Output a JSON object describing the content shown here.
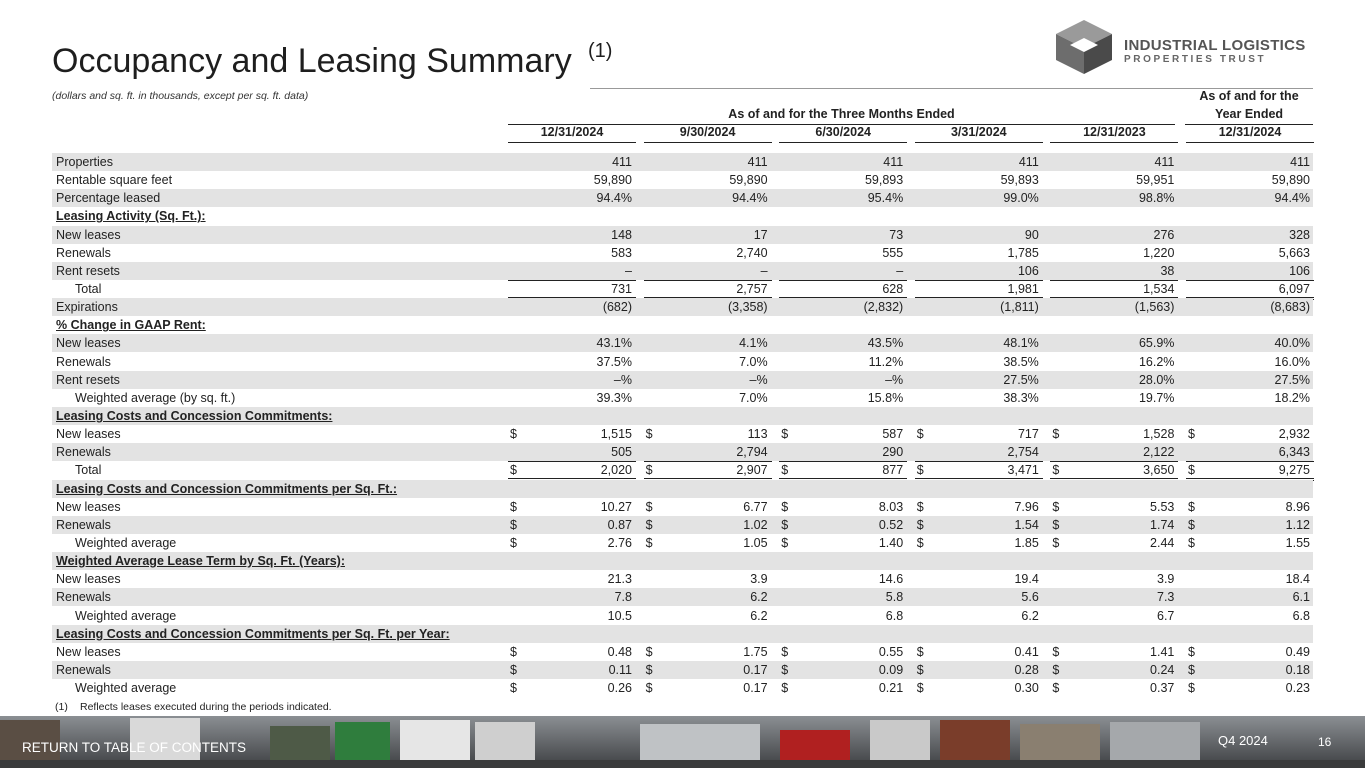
{
  "header": {
    "title": "Occupancy and Leasing Summary",
    "title_note": "(1)",
    "subtitle": "(dollars and sq. ft. in thousands, except per sq. ft. data)"
  },
  "logo": {
    "line1": "INDUSTRIAL LOGISTICS",
    "line2": "PROPERTIES TRUST"
  },
  "table": {
    "group_quarter": "As of and for the Three Months Ended",
    "group_year": [
      "As of and for the",
      "Year Ended"
    ],
    "columns": [
      "12/31/2024",
      "9/30/2024",
      "6/30/2024",
      "3/31/2024",
      "12/31/2023",
      "12/31/2024"
    ],
    "rows": [
      {
        "label": "Properties",
        "values": [
          "411",
          "411",
          "411",
          "411",
          "411",
          "411"
        ]
      },
      {
        "label": "Rentable square feet",
        "values": [
          "59,890",
          "59,890",
          "59,893",
          "59,893",
          "59,951",
          "59,890"
        ]
      },
      {
        "label": "Percentage leased",
        "values": [
          "94.4%",
          "94.4%",
          "95.4%",
          "99.0%",
          "98.8%",
          "94.4%"
        ]
      },
      {
        "label": "Leasing Activity (Sq. Ft.):"
      },
      {
        "label": "New leases",
        "values": [
          "148",
          "17",
          "73",
          "90",
          "276",
          "328"
        ]
      },
      {
        "label": "Renewals",
        "values": [
          "583",
          "2,740",
          "555",
          "1,785",
          "1,220",
          "5,663"
        ]
      },
      {
        "label": "Rent resets",
        "values": [
          "–",
          "–",
          "–",
          "106",
          "38",
          "106"
        ]
      },
      {
        "label": "Total",
        "indent": true,
        "total": true,
        "values": [
          "731",
          "2,757",
          "628",
          "1,981",
          "1,534",
          "6,097"
        ]
      },
      {
        "label": "Expirations",
        "values": [
          "(682)",
          "(3,358)",
          "(2,832)",
          "(1,811)",
          "(1,563)",
          "(8,683)"
        ]
      },
      {
        "label": "% Change in GAAP Rent:"
      },
      {
        "label": "New leases",
        "values": [
          "43.1%",
          "4.1%",
          "43.5%",
          "48.1%",
          "65.9%",
          "40.0%"
        ]
      },
      {
        "label": "Renewals",
        "values": [
          "37.5%",
          "7.0%",
          "11.2%",
          "38.5%",
          "16.2%",
          "16.0%"
        ]
      },
      {
        "label": "Rent resets",
        "values": [
          "–%",
          "–%",
          "–%",
          "27.5%",
          "28.0%",
          "27.5%"
        ]
      },
      {
        "label": "Weighted average (by sq. ft.)",
        "indent": true,
        "values": [
          "39.3%",
          "7.0%",
          "15.8%",
          "38.3%",
          "19.7%",
          "18.2%"
        ]
      },
      {
        "label": "Leasing Costs and Concession Commitments:"
      },
      {
        "label": "New leases",
        "currency": "$",
        "values": [
          "1,515",
          "113",
          "587",
          "717",
          "1,528",
          "2,932"
        ]
      },
      {
        "label": "Renewals",
        "values": [
          "505",
          "2,794",
          "290",
          "2,754",
          "2,122",
          "6,343"
        ]
      },
      {
        "label": "Total",
        "indent": true,
        "total": true,
        "currency": "$",
        "values": [
          "2,020",
          "2,907",
          "877",
          "3,471",
          "3,650",
          "9,275"
        ]
      },
      {
        "label": "Leasing Costs and Concession Commitments per Sq. Ft.:"
      },
      {
        "label": "New leases",
        "currency": "$",
        "values": [
          "10.27",
          "6.77",
          "8.03",
          "7.96",
          "5.53",
          "8.96"
        ]
      },
      {
        "label": "Renewals",
        "currency": "$",
        "values": [
          "0.87",
          "1.02",
          "0.52",
          "1.54",
          "1.74",
          "1.12"
        ]
      },
      {
        "label": "Weighted average",
        "indent": true,
        "currency": "$",
        "values": [
          "2.76",
          "1.05",
          "1.40",
          "1.85",
          "2.44",
          "1.55"
        ]
      },
      {
        "label": "Weighted Average Lease Term by Sq. Ft. (Years):"
      },
      {
        "label": "New leases",
        "values": [
          "21.3",
          "3.9",
          "14.6",
          "19.4",
          "3.9",
          "18.4"
        ]
      },
      {
        "label": "Renewals",
        "values": [
          "7.8",
          "6.2",
          "5.8",
          "5.6",
          "7.3",
          "6.1"
        ]
      },
      {
        "label": "Weighted average",
        "indent": true,
        "values": [
          "10.5",
          "6.2",
          "6.8",
          "6.2",
          "6.7",
          "6.8"
        ]
      },
      {
        "label": "Leasing Costs and Concession Commitments per Sq. Ft. per Year:"
      },
      {
        "label": "New leases",
        "currency": "$",
        "values": [
          "0.48",
          "1.75",
          "0.55",
          "0.41",
          "1.41",
          "0.49"
        ]
      },
      {
        "label": "Renewals",
        "currency": "$",
        "values": [
          "0.11",
          "0.17",
          "0.09",
          "0.28",
          "0.24",
          "0.18"
        ]
      },
      {
        "label": "Weighted average",
        "indent": true,
        "currency": "$",
        "values": [
          "0.26",
          "0.17",
          "0.21",
          "0.30",
          "0.37",
          "0.23"
        ]
      }
    ]
  },
  "footnote": {
    "marker": "(1)",
    "text": "Reflects leases executed during the periods indicated."
  },
  "footer": {
    "link": "RETURN TO TABLE OF CONTENTS",
    "period": "Q4 2024",
    "page": "16"
  }
}
